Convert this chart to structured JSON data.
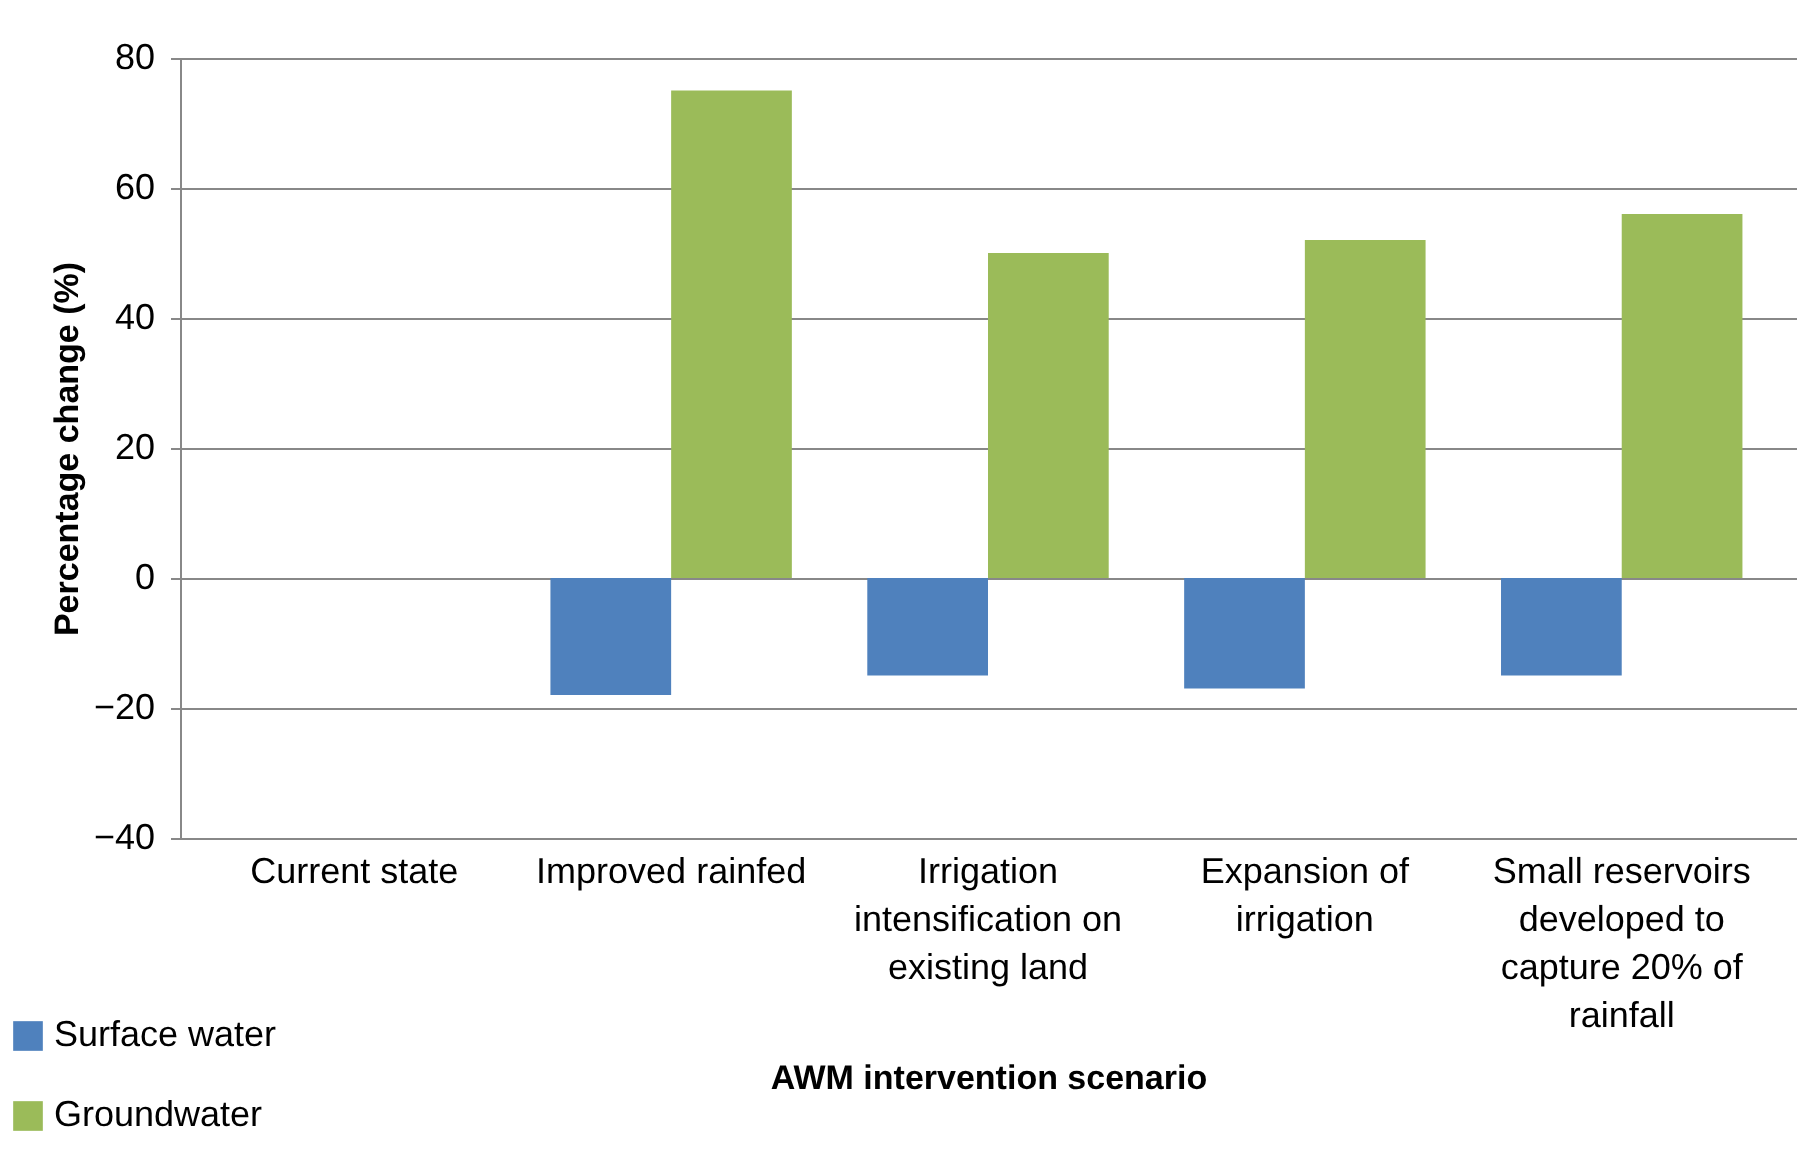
{
  "chart_data": {
    "type": "bar",
    "xlabel": "AWM intervention scenario",
    "ylabel": "Percentage change (%)",
    "categories": [
      "Current state",
      "Improved rainfed",
      "Irrigation intensification on existing land",
      "Expansion of irrigation",
      "Small reservoirs developed to capture 20% of rainfall"
    ],
    "series": [
      {
        "name": "Surface water",
        "color": "#4f81bd",
        "values": [
          0,
          -18,
          -15,
          -17,
          -15
        ]
      },
      {
        "name": "Groundwater",
        "color": "#9bbb59",
        "values": [
          0,
          75,
          50,
          52,
          56
        ]
      }
    ],
    "ylim": [
      -40,
      80
    ],
    "yticks": [
      -40,
      -20,
      0,
      20,
      40,
      60,
      80
    ],
    "grid": "y",
    "legend": "bottom left"
  }
}
